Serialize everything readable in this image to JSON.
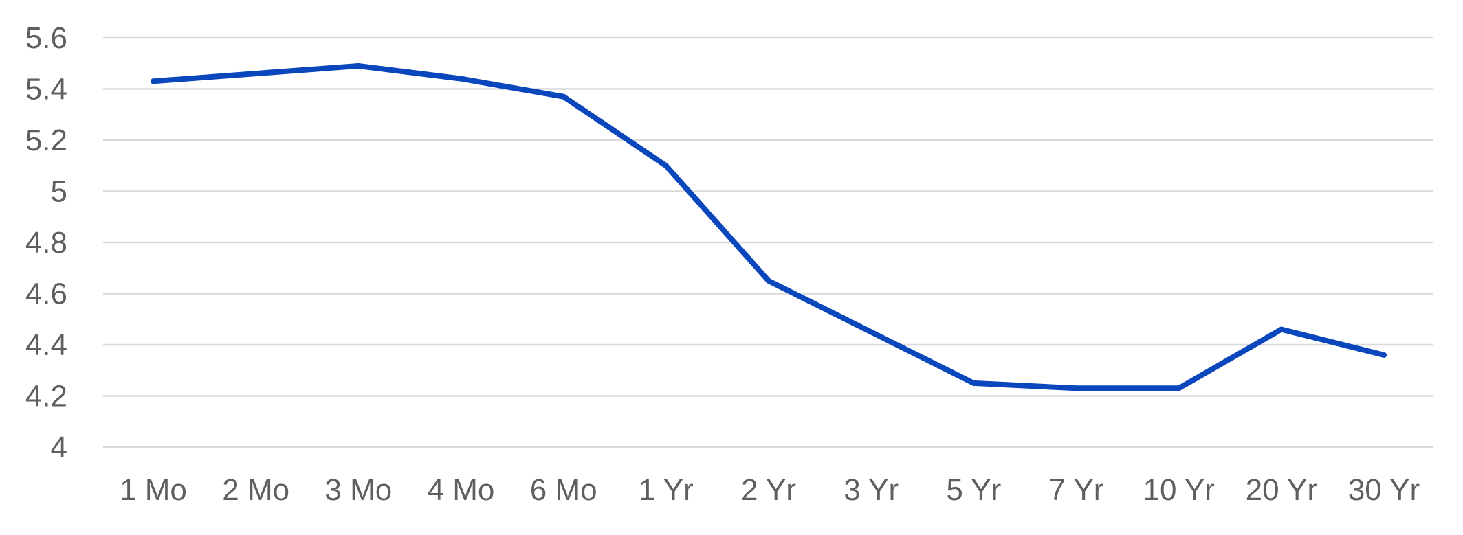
{
  "chart_data": {
    "type": "line",
    "categories": [
      "1 Mo",
      "2 Mo",
      "3 Mo",
      "4 Mo",
      "6 Mo",
      "1 Yr",
      "2 Yr",
      "3 Yr",
      "5 Yr",
      "7 Yr",
      "10 Yr",
      "20 Yr",
      "30 Yr"
    ],
    "series": [
      {
        "values": [
          5.43,
          5.46,
          5.49,
          5.44,
          5.37,
          5.1,
          4.65,
          4.45,
          4.25,
          4.23,
          4.23,
          4.46,
          4.36
        ]
      }
    ],
    "ylim": [
      4,
      5.6
    ],
    "y_ticks": [
      "4",
      "4.2",
      "4.4",
      "4.6",
      "4.8",
      "5",
      "5.2",
      "5.4",
      "5.6"
    ],
    "grid": true,
    "legend": "none",
    "colors": {
      "line": "#0a47bd",
      "grid": "#d9d9d9",
      "text": "#5f5f5f"
    }
  }
}
